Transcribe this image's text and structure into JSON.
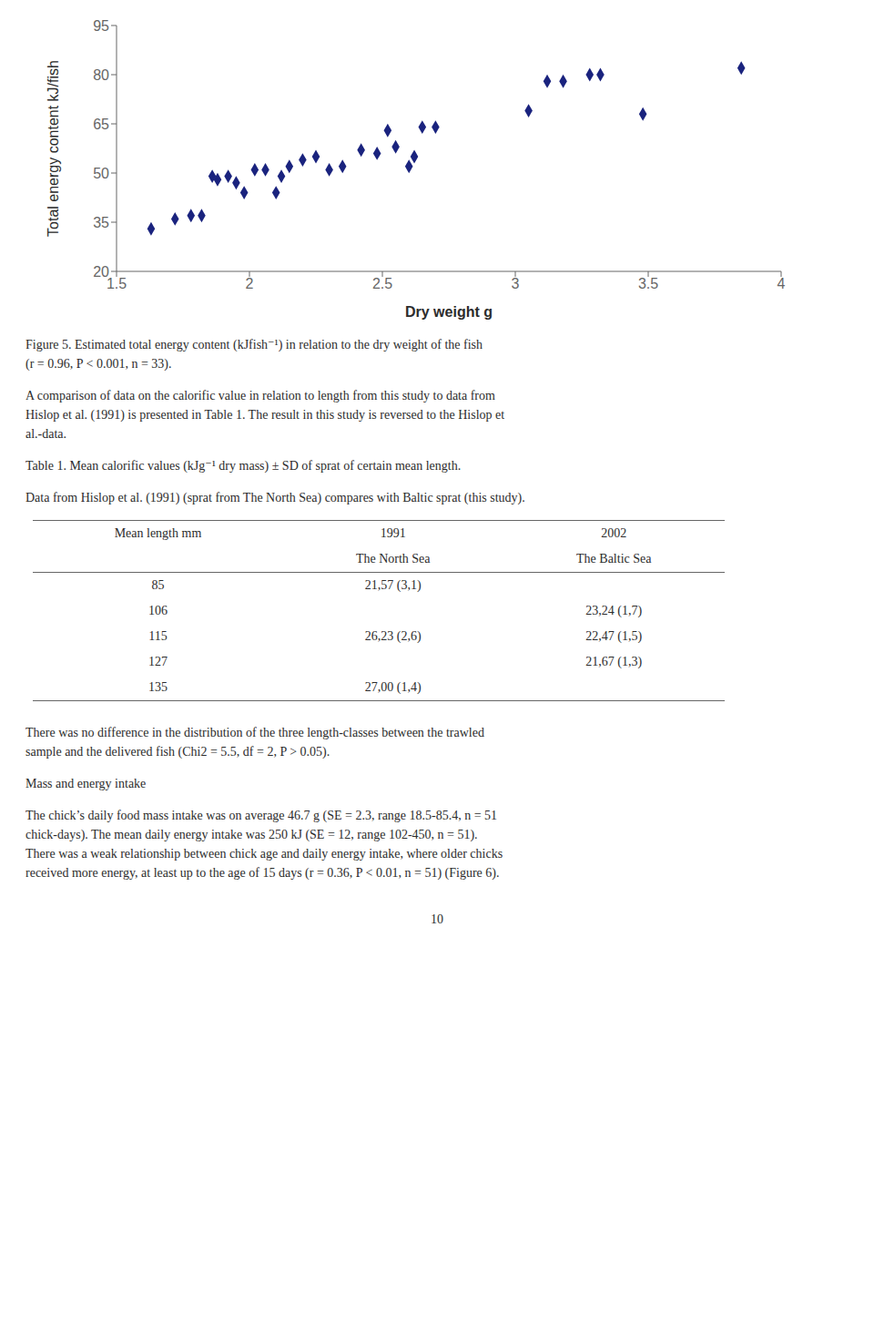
{
  "chart_data": {
    "type": "scatter",
    "x": [
      1.63,
      1.72,
      1.78,
      1.82,
      1.86,
      1.88,
      1.92,
      1.95,
      1.98,
      2.02,
      2.06,
      2.1,
      2.12,
      2.15,
      2.2,
      2.25,
      2.3,
      2.35,
      2.42,
      2.48,
      2.52,
      2.55,
      2.6,
      2.62,
      2.65,
      2.7,
      3.05,
      3.12,
      3.18,
      3.28,
      3.32,
      3.48,
      3.85
    ],
    "values": [
      33,
      36,
      37,
      37,
      49,
      48,
      49,
      47,
      44,
      51,
      51,
      44,
      49,
      52,
      54,
      55,
      51,
      52,
      57,
      56,
      63,
      58,
      52,
      55,
      64,
      64,
      69,
      78,
      78,
      80,
      80,
      68,
      82
    ],
    "color": "#1a237e",
    "marker": "diamond",
    "x_label": "Dry weight g",
    "y_label": "Total energy content kJ/fish",
    "xlim": [
      1.5,
      4.0
    ],
    "ylim": [
      20,
      95
    ],
    "xticks": [
      1.5,
      2.0,
      2.5,
      3.0,
      3.5,
      4.0
    ],
    "yticks": [
      20,
      35,
      50,
      65,
      80,
      95
    ],
    "grid": false,
    "annotations": [
      "Figure 5.   Estimated total energy content (kJfish⁻¹) in relation to the dry weight of the fish\n(r = 0.96, P < 0.001, n = 33).",
      "A comparison of data on the calorific value in relation to length from this study to data from\nHislop et al. (1991) is presented in Table 1. The result in this study is reversed to the Hislop et\nal.-data.",
      "Table 1.   Mean calorific values (kJg⁻¹ dry mass) ± SD of sprat of certain mean length.",
      "Data from Hislop et al. (1991) (sprat from The North Sea) compares with Baltic sprat (this study)."
    ],
    "table": {
      "columns": [
        "Mean length mm",
        "1991",
        "2002"
      ],
      "subcolumns": [
        null,
        "The North Sea",
        "The Baltic Sea"
      ],
      "rows": [
        [
          "85",
          "21,57 (3,1)",
          null
        ],
        [
          "106",
          null,
          "23,24 (1,7)"
        ],
        [
          "115",
          "26,23 (2,6)",
          "22,47 (1,5)"
        ],
        [
          "127",
          null,
          "21,67 (1,3)"
        ],
        [
          "135",
          "27,00 (1,4)",
          null
        ]
      ]
    },
    "annotations_after_table": [
      "There was no difference in the distribution of the three length-classes between the trawled\nsample and the delivered fish (Chi2 = 5.5, df = 2, P > 0.05).",
      "Mass and energy intake",
      "The chick’s daily food mass intake was on average 46.7 g (SE = 2.3, range 18.5-85.4, n = 51\nchick-days). The mean daily energy intake was 250 kJ (SE = 12, range 102-450, n = 51).\nThere was a weak relationship between chick age and daily energy intake, where older chicks\nreceived more energy, at least up to the age of 15 days (r = 0.36, P < 0.01, n = 51) (Figure 6)."
    ],
    "page_number": "10"
  }
}
